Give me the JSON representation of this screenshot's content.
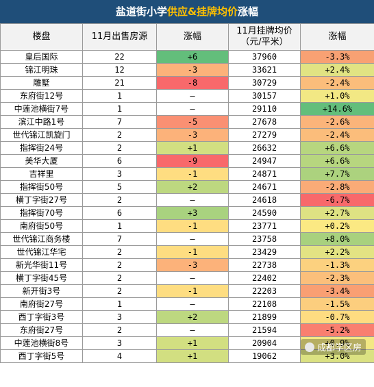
{
  "title": {
    "main": "盐道街小学",
    "accent": "供应&挂牌均价",
    "tail": "涨幅"
  },
  "headers": {
    "building": "楼盘",
    "supply": "11月出售房源",
    "supply_change": "涨幅",
    "price": "11月挂牌均价\n（元/平米）",
    "price_change": "涨幅"
  },
  "rows": [
    {
      "name": "皇后国际",
      "supply": "22",
      "sc": "+6",
      "price": "37960",
      "pc": "-3.3%",
      "sc_color": "#63be7b",
      "pc_color": "#f8a173"
    },
    {
      "name": "锦江明珠",
      "supply": "12",
      "sc": "-3",
      "price": "33621",
      "pc": "+2.4%",
      "sc_color": "#fcb27a",
      "pc_color": "#e1e383"
    },
    {
      "name": "雕墅",
      "supply": "21",
      "sc": "-8",
      "price": "30729",
      "pc": "-2.4%",
      "sc_color": "#f8696b",
      "pc_color": "#fbbd7b"
    },
    {
      "name": "东府街12号",
      "supply": "1",
      "sc": "–",
      "price": "30157",
      "pc": "+1.0%",
      "sc_color": "#ffffff",
      "pc_color": "#f2e884"
    },
    {
      "name": "中莲池横街7号",
      "supply": "1",
      "sc": "–",
      "price": "29110",
      "pc": "+14.6%",
      "sc_color": "#ffffff",
      "pc_color": "#63be7b"
    },
    {
      "name": "滨江中路1号",
      "supply": "7",
      "sc": "-5",
      "price": "27678",
      "pc": "-2.6%",
      "sc_color": "#fa9073",
      "pc_color": "#fbb47a"
    },
    {
      "name": "世代锦江凯旋门",
      "supply": "2",
      "sc": "-3",
      "price": "27279",
      "pc": "-2.4%",
      "sc_color": "#fcb27a",
      "pc_color": "#fbbd7b"
    },
    {
      "name": "指挥街24号",
      "supply": "2",
      "sc": "+1",
      "price": "26632",
      "pc": "+6.6%",
      "sc_color": "#d2df81",
      "pc_color": "#b7d67f"
    },
    {
      "name": "美华大厦",
      "supply": "6",
      "sc": "-9",
      "price": "24947",
      "pc": "+6.6%",
      "sc_color": "#f8696b",
      "pc_color": "#b7d67f"
    },
    {
      "name": "吉祥里",
      "supply": "3",
      "sc": "-1",
      "price": "24871",
      "pc": "+7.7%",
      "sc_color": "#fedd81",
      "pc_color": "#acd27e"
    },
    {
      "name": "指挥街50号",
      "supply": "5",
      "sc": "+2",
      "price": "24671",
      "pc": "-2.8%",
      "sc_color": "#bdd880",
      "pc_color": "#faab77"
    },
    {
      "name": "横丁字街27号",
      "supply": "2",
      "sc": "–",
      "price": "24618",
      "pc": "-6.7%",
      "sc_color": "#ffffff",
      "pc_color": "#f8696b"
    },
    {
      "name": "指挥街70号",
      "supply": "6",
      "sc": "+3",
      "price": "24590",
      "pc": "+2.7%",
      "sc_color": "#a9d27f",
      "pc_color": "#dee283"
    },
    {
      "name": "南府街50号",
      "supply": "1",
      "sc": "-1",
      "price": "23771",
      "pc": "+0.2%",
      "sc_color": "#fedd81",
      "pc_color": "#fbe983"
    },
    {
      "name": "世代锦江商务楼",
      "supply": "7",
      "sc": "–",
      "price": "23758",
      "pc": "+8.0%",
      "sc_color": "#ffffff",
      "pc_color": "#a8d17e"
    },
    {
      "name": "世代锦江华宅",
      "supply": "2",
      "sc": "-1",
      "price": "23429",
      "pc": "+2.2%",
      "sc_color": "#fedd81",
      "pc_color": "#e3e383"
    },
    {
      "name": "新光华街11号",
      "supply": "2",
      "sc": "-3",
      "price": "22738",
      "pc": "-1.3%",
      "sc_color": "#fcb27a",
      "pc_color": "#fcd17f"
    },
    {
      "name": "横丁字街45号",
      "supply": "2",
      "sc": "–",
      "price": "22402",
      "pc": "-2.3%",
      "sc_color": "#ffffff",
      "pc_color": "#fbbf7b"
    },
    {
      "name": "新开街3号",
      "supply": "2",
      "sc": "-1",
      "price": "22203",
      "pc": "-3.4%",
      "sc_color": "#fedd81",
      "pc_color": "#f99f73"
    },
    {
      "name": "南府街27号",
      "supply": "1",
      "sc": "–",
      "price": "22108",
      "pc": "-1.5%",
      "sc_color": "#ffffff",
      "pc_color": "#fcce7e"
    },
    {
      "name": "西丁字街3号",
      "supply": "3",
      "sc": "+2",
      "price": "21899",
      "pc": "-0.7%",
      "sc_color": "#bdd880",
      "pc_color": "#fedc81"
    },
    {
      "name": "东府街27号",
      "supply": "2",
      "sc": "–",
      "price": "21594",
      "pc": "-5.2%",
      "sc_color": "#ffffff",
      "pc_color": "#f97f70"
    },
    {
      "name": "中莲池横街8号",
      "supply": "3",
      "sc": "+1",
      "price": "20904",
      "pc": "+0.9%",
      "sc_color": "#d2df81",
      "pc_color": "#f3e884"
    },
    {
      "name": "西丁字街5号",
      "supply": "4",
      "sc": "+1",
      "price": "19062",
      "pc": "+3.0%",
      "sc_color": "#d2df81",
      "pc_color": "#dbe182"
    }
  ],
  "watermark": "成都学区房"
}
